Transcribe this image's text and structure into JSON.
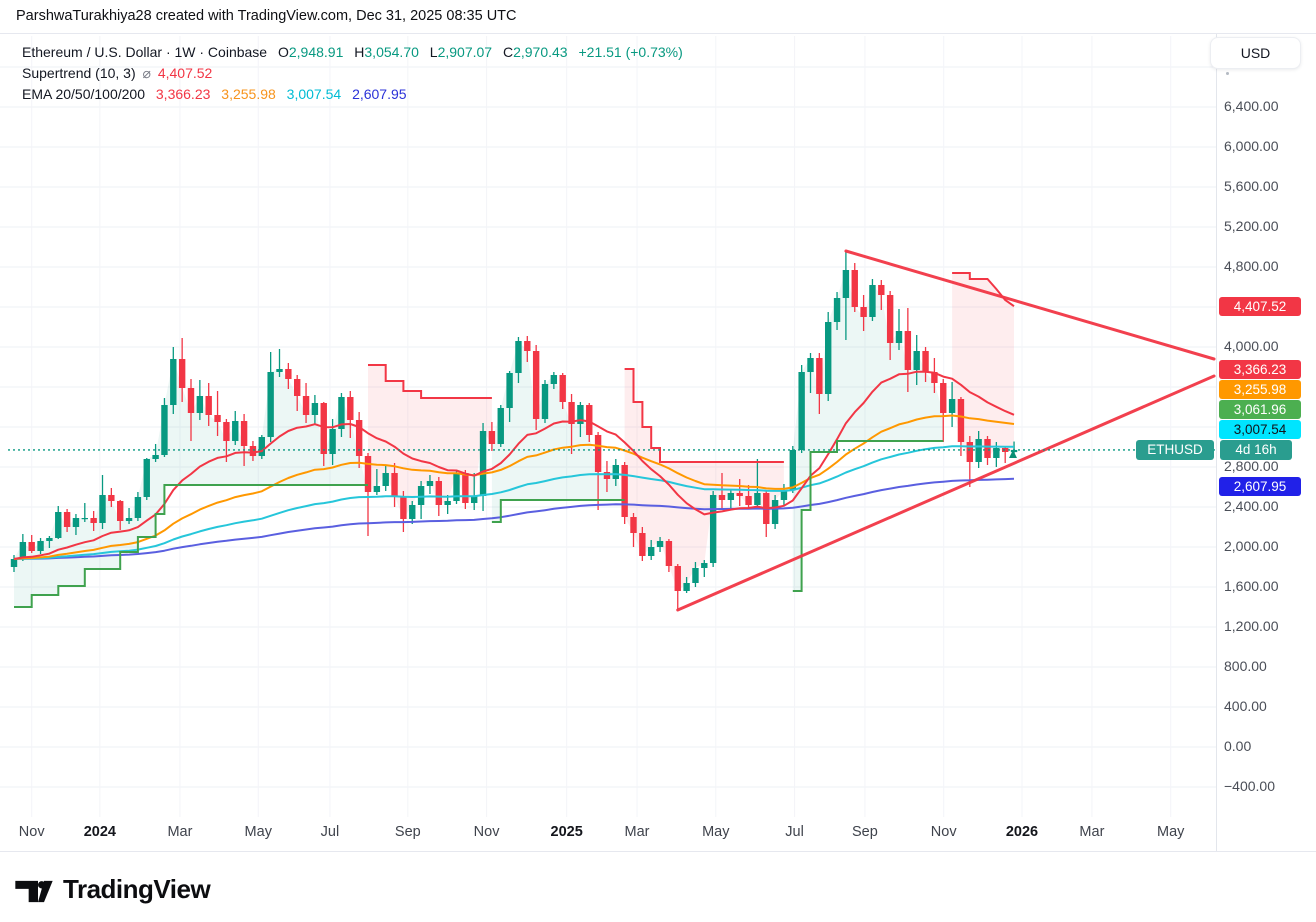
{
  "header": {
    "attribution": "ParshwaTurakhiya28 created with TradingView.com, Dec 31, 2025 08:35 UTC"
  },
  "legend": {
    "symbol_title": "Ethereum / U.S. Dollar · 1W · Coinbase",
    "ohlc": [
      {
        "k": "O",
        "v": "2,948.91"
      },
      {
        "k": "H",
        "v": "3,054.70"
      },
      {
        "k": "L",
        "v": "2,907.07"
      },
      {
        "k": "C",
        "v": "2,970.43"
      }
    ],
    "change": "+21.51 (+0.73%)",
    "supertrend_label": "Supertrend (10, 3)",
    "supertrend_avg_symbol": "⌀",
    "supertrend_value": "4,407.52",
    "ema_label": "EMA 20/50/100/200",
    "ema_values": [
      "3,366.23",
      "3,255.98",
      "3,007.54",
      "2,607.95"
    ]
  },
  "price_axis": {
    "currency_button": "USD",
    "ticks": [
      {
        "price": 6400,
        "label": "6,400.00"
      },
      {
        "price": 6000,
        "label": "6,000.00"
      },
      {
        "price": 5600,
        "label": "5,600.00"
      },
      {
        "price": 5200,
        "label": "5,200.00"
      },
      {
        "price": 4800,
        "label": "4,800.00"
      },
      {
        "price": 4000,
        "label": "4,000.00"
      },
      {
        "price": 2800,
        "label": "2,800.00"
      },
      {
        "price": 2400,
        "label": "2,400.00"
      },
      {
        "price": 2000,
        "label": "2,000.00"
      },
      {
        "price": 1600,
        "label": "1,600.00"
      },
      {
        "price": 1200,
        "label": "1,200.00"
      },
      {
        "price": 800,
        "label": "800.00"
      },
      {
        "price": 400,
        "label": "400.00"
      },
      {
        "price": 0,
        "label": "0.00"
      },
      {
        "price": -400,
        "label": "−400.00"
      }
    ],
    "badges": [
      {
        "value": 4407.52,
        "text": "4,407.52",
        "bg": "#f23645",
        "fg": "#ffffff"
      },
      {
        "value": 3366.23,
        "text": "3,366.23",
        "bg": "#f23645",
        "fg": "#ffffff"
      },
      {
        "value": 3255.98,
        "text": "3,255.98",
        "bg": "#ff9800",
        "fg": "#ffffff"
      },
      {
        "value": 3061.96,
        "text": "3,061.96",
        "bg": "#4caf50",
        "fg": "#ffffff"
      },
      {
        "value": 3007.54,
        "text": "3,007.54",
        "bg": "#00e5ff",
        "fg": "#11131a"
      },
      {
        "value": 2607.95,
        "text": "2,607.95",
        "bg": "#2121e8",
        "fg": "#ffffff"
      }
    ],
    "symbol_row": {
      "label": "ETHUSD",
      "countdown": "4d 16h",
      "bg": "#2a9d8f",
      "price": 2970.43
    }
  },
  "time_axis": {
    "ticks": [
      {
        "label": "Nov",
        "week": 2,
        "year": false
      },
      {
        "label": "2024",
        "week": 9.7,
        "year": true
      },
      {
        "label": "Mar",
        "week": 18.75,
        "year": false
      },
      {
        "label": "May",
        "week": 27.6,
        "year": false
      },
      {
        "label": "Jul",
        "week": 35.7,
        "year": false
      },
      {
        "label": "Sep",
        "week": 44.5,
        "year": false
      },
      {
        "label": "Nov",
        "week": 53.4,
        "year": false
      },
      {
        "label": "2025",
        "week": 62.45,
        "year": true
      },
      {
        "label": "Mar",
        "week": 70.4,
        "year": false
      },
      {
        "label": "May",
        "week": 79.3,
        "year": false
      },
      {
        "label": "Jul",
        "week": 88.2,
        "year": false
      },
      {
        "label": "Sep",
        "week": 96.15,
        "year": false
      },
      {
        "label": "Nov",
        "week": 105.05,
        "year": false
      },
      {
        "label": "2026",
        "week": 113.9,
        "year": true
      },
      {
        "label": "Mar",
        "week": 121.8,
        "year": false
      },
      {
        "label": "May",
        "week": 130.7,
        "year": false
      }
    ]
  },
  "footer": {
    "logo_text": "TradingView"
  },
  "chart_data": {
    "type": "candlestick",
    "symbol": "ETHUSD",
    "exchange": "Coinbase",
    "interval": "1W",
    "title": "Ethereum / U.S. Dollar",
    "grid": true,
    "price_step": 400,
    "price_range": [
      -400,
      6800
    ],
    "current_price": 2970.43,
    "up_color": "#089981",
    "down_color": "#f23645",
    "candles_ohlc": [
      [
        1800,
        1920,
        1750,
        1880
      ],
      [
        1880,
        2130,
        1860,
        2050
      ],
      [
        2050,
        2120,
        1940,
        1960
      ],
      [
        1960,
        2090,
        1930,
        2060
      ],
      [
        2060,
        2110,
        1990,
        2090
      ],
      [
        2090,
        2410,
        2080,
        2350
      ],
      [
        2350,
        2380,
        2150,
        2200
      ],
      [
        2200,
        2330,
        2120,
        2290
      ],
      [
        2290,
        2440,
        2250,
        2290
      ],
      [
        2290,
        2360,
        2160,
        2240
      ],
      [
        2240,
        2720,
        2180,
        2520
      ],
      [
        2520,
        2590,
        2400,
        2460
      ],
      [
        2460,
        2470,
        2170,
        2260
      ],
      [
        2260,
        2390,
        2230,
        2290
      ],
      [
        2290,
        2550,
        2260,
        2500
      ],
      [
        2500,
        2890,
        2470,
        2880
      ],
      [
        2880,
        3030,
        2850,
        2920
      ],
      [
        2920,
        3490,
        2900,
        3420
      ],
      [
        3420,
        4000,
        3330,
        3880
      ],
      [
        3880,
        4090,
        3450,
        3590
      ],
      [
        3590,
        3680,
        3060,
        3340
      ],
      [
        3340,
        3670,
        3270,
        3510
      ],
      [
        3510,
        3640,
        3210,
        3320
      ],
      [
        3320,
        3560,
        3110,
        3250
      ],
      [
        3250,
        3280,
        2850,
        3060
      ],
      [
        3060,
        3360,
        3020,
        3260
      ],
      [
        3260,
        3330,
        2810,
        3010
      ],
      [
        3010,
        3060,
        2860,
        2910
      ],
      [
        2910,
        3120,
        2880,
        3100
      ],
      [
        3100,
        3950,
        3050,
        3750
      ],
      [
        3750,
        3980,
        3700,
        3780
      ],
      [
        3780,
        3840,
        3580,
        3680
      ],
      [
        3680,
        3720,
        3360,
        3510
      ],
      [
        3510,
        3640,
        3240,
        3320
      ],
      [
        3320,
        3520,
        3230,
        3440
      ],
      [
        3440,
        3450,
        2810,
        2930
      ],
      [
        2930,
        3280,
        2820,
        3180
      ],
      [
        3180,
        3540,
        3100,
        3500
      ],
      [
        3500,
        3560,
        3090,
        3270
      ],
      [
        3270,
        3350,
        2790,
        2910
      ],
      [
        2910,
        2940,
        2110,
        2550
      ],
      [
        2550,
        2780,
        2520,
        2610
      ],
      [
        2610,
        2820,
        2560,
        2740
      ],
      [
        2740,
        2840,
        2400,
        2510
      ],
      [
        2510,
        2560,
        2150,
        2280
      ],
      [
        2280,
        2460,
        2230,
        2420
      ],
      [
        2420,
        2660,
        2280,
        2610
      ],
      [
        2610,
        2720,
        2530,
        2660
      ],
      [
        2660,
        2700,
        2310,
        2420
      ],
      [
        2420,
        2520,
        2330,
        2460
      ],
      [
        2460,
        2770,
        2430,
        2740
      ],
      [
        2740,
        2770,
        2380,
        2440
      ],
      [
        2440,
        2740,
        2370,
        2510
      ],
      [
        2510,
        3240,
        2360,
        3160
      ],
      [
        3160,
        3250,
        2960,
        3030
      ],
      [
        3030,
        3420,
        3000,
        3390
      ],
      [
        3390,
        3760,
        3250,
        3740
      ],
      [
        3740,
        4100,
        3640,
        4060
      ],
      [
        4060,
        4110,
        3850,
        3960
      ],
      [
        3960,
        4020,
        3170,
        3280
      ],
      [
        3280,
        3670,
        3240,
        3630
      ],
      [
        3630,
        3750,
        3580,
        3720
      ],
      [
        3720,
        3740,
        3380,
        3450
      ],
      [
        3450,
        3530,
        2930,
        3230
      ],
      [
        3230,
        3450,
        3100,
        3420
      ],
      [
        3420,
        3440,
        3050,
        3120
      ],
      [
        3120,
        3150,
        2370,
        2750
      ],
      [
        2750,
        2860,
        2550,
        2680
      ],
      [
        2680,
        2880,
        2610,
        2820
      ],
      [
        2820,
        2850,
        2230,
        2300
      ],
      [
        2300,
        2340,
        2000,
        2140
      ],
      [
        2140,
        2200,
        1860,
        1910
      ],
      [
        1910,
        2070,
        1870,
        2000
      ],
      [
        2000,
        2100,
        1950,
        2060
      ],
      [
        2060,
        2080,
        1750,
        1810
      ],
      [
        1810,
        1830,
        1380,
        1560
      ],
      [
        1560,
        1700,
        1540,
        1640
      ],
      [
        1640,
        1850,
        1600,
        1790
      ],
      [
        1790,
        1870,
        1700,
        1840
      ],
      [
        1840,
        2560,
        1800,
        2520
      ],
      [
        2520,
        2740,
        2380,
        2470
      ],
      [
        2470,
        2580,
        2370,
        2540
      ],
      [
        2540,
        2680,
        2410,
        2510
      ],
      [
        2510,
        2620,
        2380,
        2420
      ],
      [
        2420,
        2880,
        2400,
        2540
      ],
      [
        2540,
        2560,
        2100,
        2230
      ],
      [
        2230,
        2520,
        2180,
        2470
      ],
      [
        2470,
        2630,
        2420,
        2570
      ],
      [
        2570,
        3010,
        2540,
        2970
      ],
      [
        2970,
        3820,
        2940,
        3750
      ],
      [
        3750,
        3940,
        3540,
        3890
      ],
      [
        3890,
        3940,
        3330,
        3530
      ],
      [
        3530,
        4350,
        3460,
        4250
      ],
      [
        4250,
        4550,
        4170,
        4490
      ],
      [
        4490,
        4960,
        4070,
        4770
      ],
      [
        4770,
        4840,
        4350,
        4400
      ],
      [
        4400,
        4520,
        4160,
        4300
      ],
      [
        4300,
        4680,
        4260,
        4620
      ],
      [
        4620,
        4670,
        4370,
        4520
      ],
      [
        4520,
        4560,
        3870,
        4040
      ],
      [
        4040,
        4380,
        3970,
        4160
      ],
      [
        4160,
        4390,
        3550,
        3770
      ],
      [
        3770,
        4120,
        3620,
        3960
      ],
      [
        3960,
        4000,
        3650,
        3750
      ],
      [
        3750,
        3890,
        3540,
        3640
      ],
      [
        3640,
        3680,
        3050,
        3340
      ],
      [
        3340,
        3650,
        3200,
        3480
      ],
      [
        3480,
        3500,
        2910,
        3050
      ],
      [
        3050,
        3110,
        2600,
        2850
      ],
      [
        2850,
        3160,
        2790,
        3080
      ],
      [
        3080,
        3110,
        2820,
        2890
      ],
      [
        2890,
        3050,
        2800,
        2990
      ],
      [
        2990,
        3010,
        2840,
        2950
      ],
      [
        2948.91,
        3054.7,
        2907.07,
        2970.43
      ]
    ],
    "emas": [
      {
        "period": 200,
        "color": "#5a5fe0",
        "last_value": 2607.95
      },
      {
        "period": 100,
        "color": "#26c6da",
        "last_value": 3007.54
      },
      {
        "period": 50,
        "color": "#ff9800",
        "last_value": 3255.98
      },
      {
        "period": 20,
        "color": "#f23645",
        "last_value": 3366.23
      }
    ],
    "supertrend": {
      "params": "(10, 3)",
      "last_value": 4407.52,
      "up_line_color": "#3fa24e",
      "down_line_color": "#f23645",
      "up_fill": "rgba(8,153,129,0.08)",
      "down_fill": "rgba(242,54,69,0.09)",
      "segments": [
        {
          "dir": "up",
          "points": [
            [
              0,
              1400
            ],
            [
              2,
              1400
            ],
            [
              2,
              1520
            ],
            [
              5,
              1520
            ],
            [
              5,
              1610
            ],
            [
              8,
              1610
            ],
            [
              8,
              1780
            ],
            [
              12,
              1780
            ],
            [
              12,
              1950
            ],
            [
              14,
              1950
            ],
            [
              14,
              2100
            ],
            [
              16,
              2100
            ],
            [
              16,
              2330
            ],
            [
              17,
              2330
            ],
            [
              17,
              2620
            ],
            [
              40,
              2620
            ]
          ]
        },
        {
          "dir": "down",
          "points": [
            [
              40,
              3820
            ],
            [
              42,
              3820
            ],
            [
              42,
              3660
            ],
            [
              44,
              3660
            ],
            [
              44,
              3560
            ],
            [
              46,
              3560
            ],
            [
              46,
              3490
            ],
            [
              54,
              3490
            ]
          ]
        },
        {
          "dir": "up",
          "points": [
            [
              54,
              2250
            ],
            [
              55,
              2250
            ],
            [
              55,
              2470
            ],
            [
              69,
              2470
            ]
          ]
        },
        {
          "dir": "down",
          "points": [
            [
              69,
              3780
            ],
            [
              70,
              3780
            ],
            [
              70,
              3450
            ],
            [
              71,
              3450
            ],
            [
              71,
              3200
            ],
            [
              72,
              3200
            ],
            [
              72,
              2990
            ],
            [
              73,
              2990
            ],
            [
              73,
              2850
            ],
            [
              87,
              2850
            ]
          ]
        },
        {
          "dir": "up",
          "points": [
            [
              88,
              1560
            ],
            [
              89,
              1560
            ],
            [
              89,
              2370
            ],
            [
              90,
              2370
            ],
            [
              90,
              2950
            ],
            [
              93,
              2950
            ],
            [
              93,
              3060
            ],
            [
              105,
              3060
            ]
          ]
        },
        {
          "dir": "down",
          "points": [
            [
              106,
              4740
            ],
            [
              108,
              4740
            ],
            [
              108,
              4680
            ],
            [
              110,
              4680
            ],
            [
              111,
              4580
            ],
            [
              112,
              4470
            ],
            [
              113,
              4407.52
            ]
          ]
        }
      ]
    },
    "trendlines": [
      {
        "name": "descending-resistance",
        "color": "#f23645",
        "from": [
          94,
          4960
        ],
        "to": [
          135.6,
          3880
        ]
      },
      {
        "name": "ascending-support",
        "color": "#f23645",
        "from": [
          75,
          1370
        ],
        "to": [
          135.6,
          3710
        ]
      }
    ],
    "price_line": {
      "price": 2970.43,
      "color": "#089981",
      "style": "dotted"
    }
  }
}
